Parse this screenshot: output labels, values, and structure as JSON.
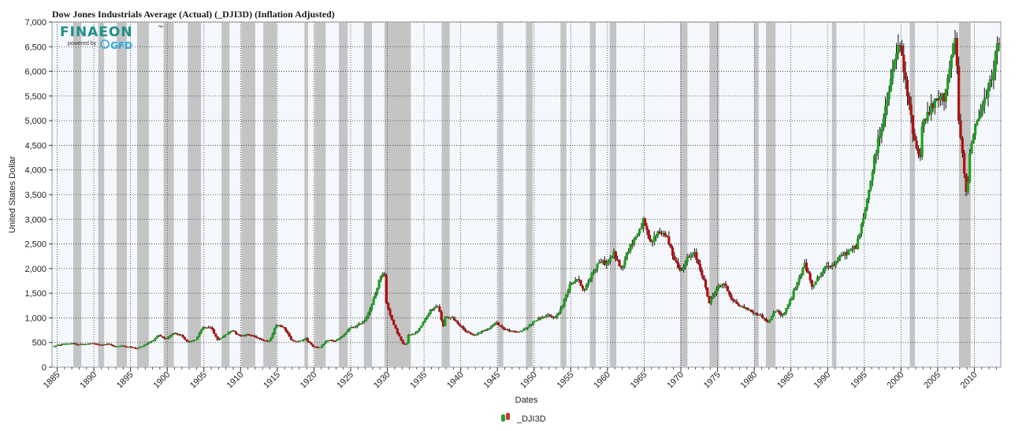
{
  "chart_data": {
    "type": "line",
    "title": "Dow Jones Industrials Average (Actual) (_DJI3D) (Inflation Adjusted)",
    "xlabel": "Dates",
    "ylabel": "United States Dollar",
    "xlim": [
      1884.3,
      2013.6
    ],
    "ylim": [
      0,
      7000
    ],
    "y_ticks": [
      0,
      500,
      1000,
      1500,
      2000,
      2500,
      3000,
      3500,
      4000,
      4500,
      5000,
      5500,
      6000,
      6500,
      7000
    ],
    "y_tick_labels": [
      "0",
      "500",
      "1,000",
      "1,500",
      "2,000",
      "2,500",
      "3,000",
      "3,500",
      "4,000",
      "4,500",
      "5,000",
      "5,500",
      "6,000",
      "6,500",
      "7,000"
    ],
    "x_ticks": [
      1885,
      1890,
      1895,
      1900,
      1905,
      1910,
      1915,
      1920,
      1925,
      1930,
      1935,
      1940,
      1945,
      1950,
      1955,
      1960,
      1965,
      1970,
      1975,
      1980,
      1985,
      1990,
      1995,
      2000,
      2005,
      2010
    ],
    "x_tick_labels": [
      "1885",
      "1890",
      "1895",
      "1900",
      "1905",
      "1910",
      "1915",
      "1920",
      "1925",
      "1930",
      "1935",
      "1940",
      "1945",
      "1950",
      "1955",
      "1960",
      "1965",
      "1970",
      "1975",
      "1980",
      "1985",
      "1990",
      "1995",
      "2000",
      "2005",
      "2010"
    ],
    "grid": true,
    "legend_position": "bottom-center",
    "recessions": [
      [
        1887.2,
        1888.3
      ],
      [
        1890.6,
        1891.4
      ],
      [
        1893.1,
        1894.5
      ],
      [
        1895.9,
        1897.5
      ],
      [
        1899.5,
        1900.9
      ],
      [
        1902.8,
        1904.6
      ],
      [
        1907.4,
        1908.5
      ],
      [
        1910.1,
        1912.0
      ],
      [
        1913.1,
        1914.9
      ],
      [
        1918.7,
        1919.2
      ],
      [
        1920.1,
        1921.6
      ],
      [
        1923.4,
        1924.6
      ],
      [
        1926.8,
        1927.9
      ],
      [
        1929.6,
        1933.2
      ],
      [
        1937.4,
        1938.5
      ],
      [
        1945.1,
        1945.8
      ],
      [
        1948.9,
        1949.8
      ],
      [
        1953.6,
        1954.4
      ],
      [
        1957.6,
        1958.4
      ],
      [
        1960.3,
        1961.2
      ],
      [
        1969.9,
        1970.9
      ],
      [
        1973.9,
        1975.2
      ],
      [
        1980.0,
        1980.6
      ],
      [
        1981.6,
        1982.9
      ],
      [
        1990.6,
        1991.2
      ],
      [
        2001.2,
        2001.9
      ],
      [
        2007.9,
        2009.5
      ]
    ],
    "series": [
      {
        "name": "_DJI3D",
        "x": [
          1884.5,
          1886,
          1887,
          1888,
          1890,
          1891,
          1892,
          1893,
          1894,
          1895,
          1896,
          1897,
          1898,
          1899,
          1900,
          1901,
          1902,
          1903,
          1904,
          1905,
          1906,
          1907,
          1908,
          1909,
          1910,
          1911,
          1912,
          1913,
          1914,
          1915,
          1916,
          1917,
          1918,
          1919,
          1920,
          1921,
          1922,
          1923,
          1924,
          1925,
          1926,
          1927,
          1928,
          1929.2,
          1929.7,
          1930,
          1931,
          1932.3,
          1932.8,
          1933,
          1934,
          1935,
          1936,
          1937,
          1937.8,
          1938,
          1939,
          1940,
          1941,
          1942,
          1943,
          1944,
          1945,
          1946,
          1947,
          1948,
          1949,
          1950,
          1951,
          1952,
          1953,
          1954,
          1955,
          1956,
          1957,
          1958,
          1959,
          1960,
          1961,
          1962,
          1963,
          1964,
          1965,
          1966,
          1967,
          1968,
          1969,
          1970,
          1971,
          1972,
          1973,
          1974,
          1975,
          1976,
          1977,
          1978,
          1979,
          1980,
          1981,
          1982,
          1983,
          1984,
          1985,
          1986,
          1987,
          1988,
          1989,
          1990,
          1991,
          1992,
          1993,
          1994,
          1995,
          1996,
          1997,
          1998,
          1999.5,
          2000,
          2001,
          2002,
          2002.7,
          2003,
          2004,
          2005,
          2006,
          2007.6,
          2008,
          2009.1,
          2009.5,
          2010,
          2011,
          2012,
          2013.3
        ],
        "values": [
          420,
          470,
          480,
          460,
          480,
          450,
          470,
          420,
          430,
          410,
          380,
          450,
          530,
          640,
          560,
          700,
          650,
          500,
          560,
          800,
          820,
          550,
          650,
          750,
          640,
          660,
          630,
          560,
          520,
          860,
          820,
          550,
          520,
          580,
          420,
          400,
          550,
          530,
          620,
          790,
          840,
          950,
          1250,
          1850,
          1950,
          1300,
          850,
          450,
          480,
          650,
          700,
          900,
          1150,
          1250,
          800,
          1000,
          1000,
          850,
          700,
          650,
          730,
          800,
          900,
          780,
          720,
          720,
          780,
          920,
          1000,
          1040,
          1000,
          1250,
          1700,
          1800,
          1550,
          1900,
          2150,
          2100,
          2300,
          2000,
          2400,
          2650,
          2950,
          2500,
          2750,
          2700,
          2300,
          1950,
          2200,
          2300,
          1900,
          1300,
          1600,
          1700,
          1400,
          1250,
          1200,
          1100,
          1050,
          900,
          1150,
          1050,
          1350,
          1700,
          2100,
          1650,
          1850,
          2050,
          2100,
          2250,
          2350,
          2450,
          3000,
          3800,
          4600,
          5200,
          6400,
          6500,
          5500,
          4600,
          4200,
          4900,
          5200,
          5400,
          5500,
          6700,
          5000,
          3400,
          4400,
          4800,
          5200,
          5600,
          6500
        ]
      }
    ]
  },
  "logo": {
    "name": "FINAEON",
    "tagline": "powered by",
    "partner": "GFD",
    "trademark": "™"
  },
  "legend": {
    "label": "_DJI3D",
    "icon": "gfd-series-icon"
  },
  "colors": {
    "background": "#f4f7fb",
    "recession": "#c4c4c4",
    "up": "#1fa01f",
    "down": "#b01010",
    "wick": "#111111",
    "logo_teal": "#1f8f8a",
    "logo_blue": "#29a8d8"
  }
}
